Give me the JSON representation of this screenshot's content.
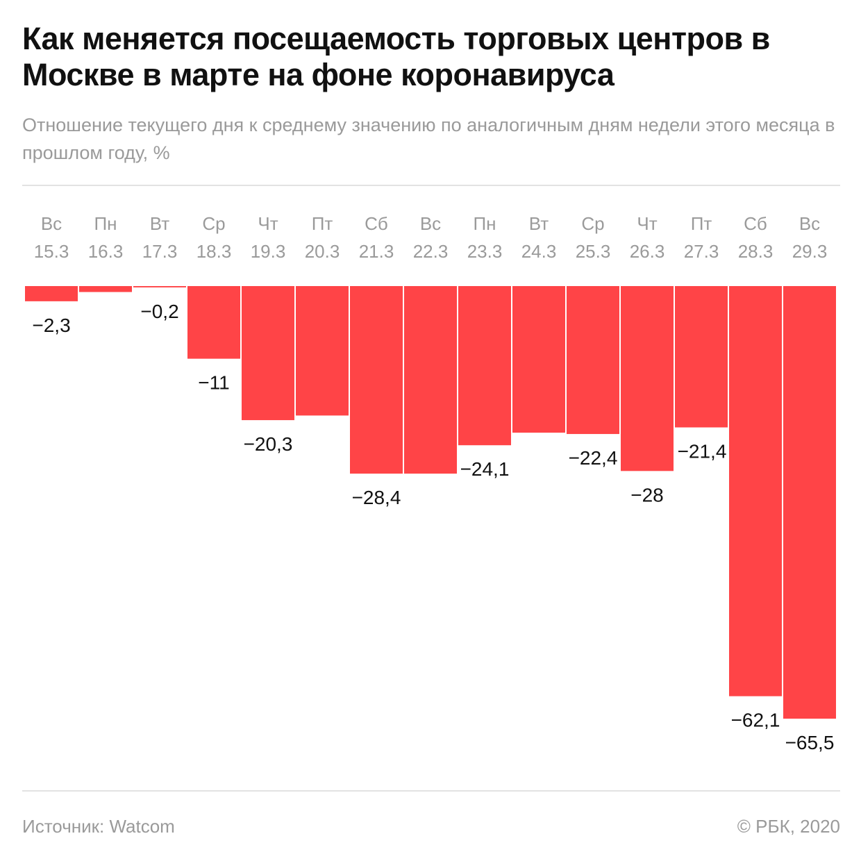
{
  "title": "Как меняется посещаемость торговых центров в Москве в марте на фоне коронавируса",
  "subtitle": "Отношение текущего дня к среднему значению по аналогичным дням недели этого месяца в прошлом году, %",
  "source": "Источник: Watcom",
  "copyright": "© РБК, 2020",
  "chart_data": {
    "type": "bar",
    "title": "Как меняется посещаемость торговых центров в Москве в марте на фоне коронавируса",
    "ylabel": "%",
    "weekdays": [
      "Вс",
      "Пн",
      "Вт",
      "Ср",
      "Чт",
      "Пт",
      "Сб",
      "Вс",
      "Пн",
      "Вт",
      "Ср",
      "Чт",
      "Пт",
      "Сб",
      "Вс"
    ],
    "categories": [
      "15.3",
      "16.3",
      "17.3",
      "18.3",
      "19.3",
      "20.3",
      "21.3",
      "22.3",
      "23.3",
      "24.3",
      "25.3",
      "26.3",
      "27.3",
      "28.3",
      "29.3"
    ],
    "values": [
      -2.3,
      -0.9,
      -0.2,
      -11,
      -20.3,
      -19.6,
      -28.4,
      -28.4,
      -24.1,
      -22.2,
      -22.4,
      -28,
      -21.4,
      -62.1,
      -65.5
    ],
    "labels": [
      "−2,3",
      null,
      "−0,2",
      "−11",
      "−20,3",
      null,
      "−28,4",
      null,
      "−24,1",
      null,
      "−22,4",
      "−28",
      null,
      "−62,1",
      "−65,5"
    ],
    "extra_labels": [
      {
        "index": 12,
        "text": "−21,4"
      }
    ],
    "ylim": [
      -65.5,
      0
    ],
    "color": "#ff4447"
  }
}
